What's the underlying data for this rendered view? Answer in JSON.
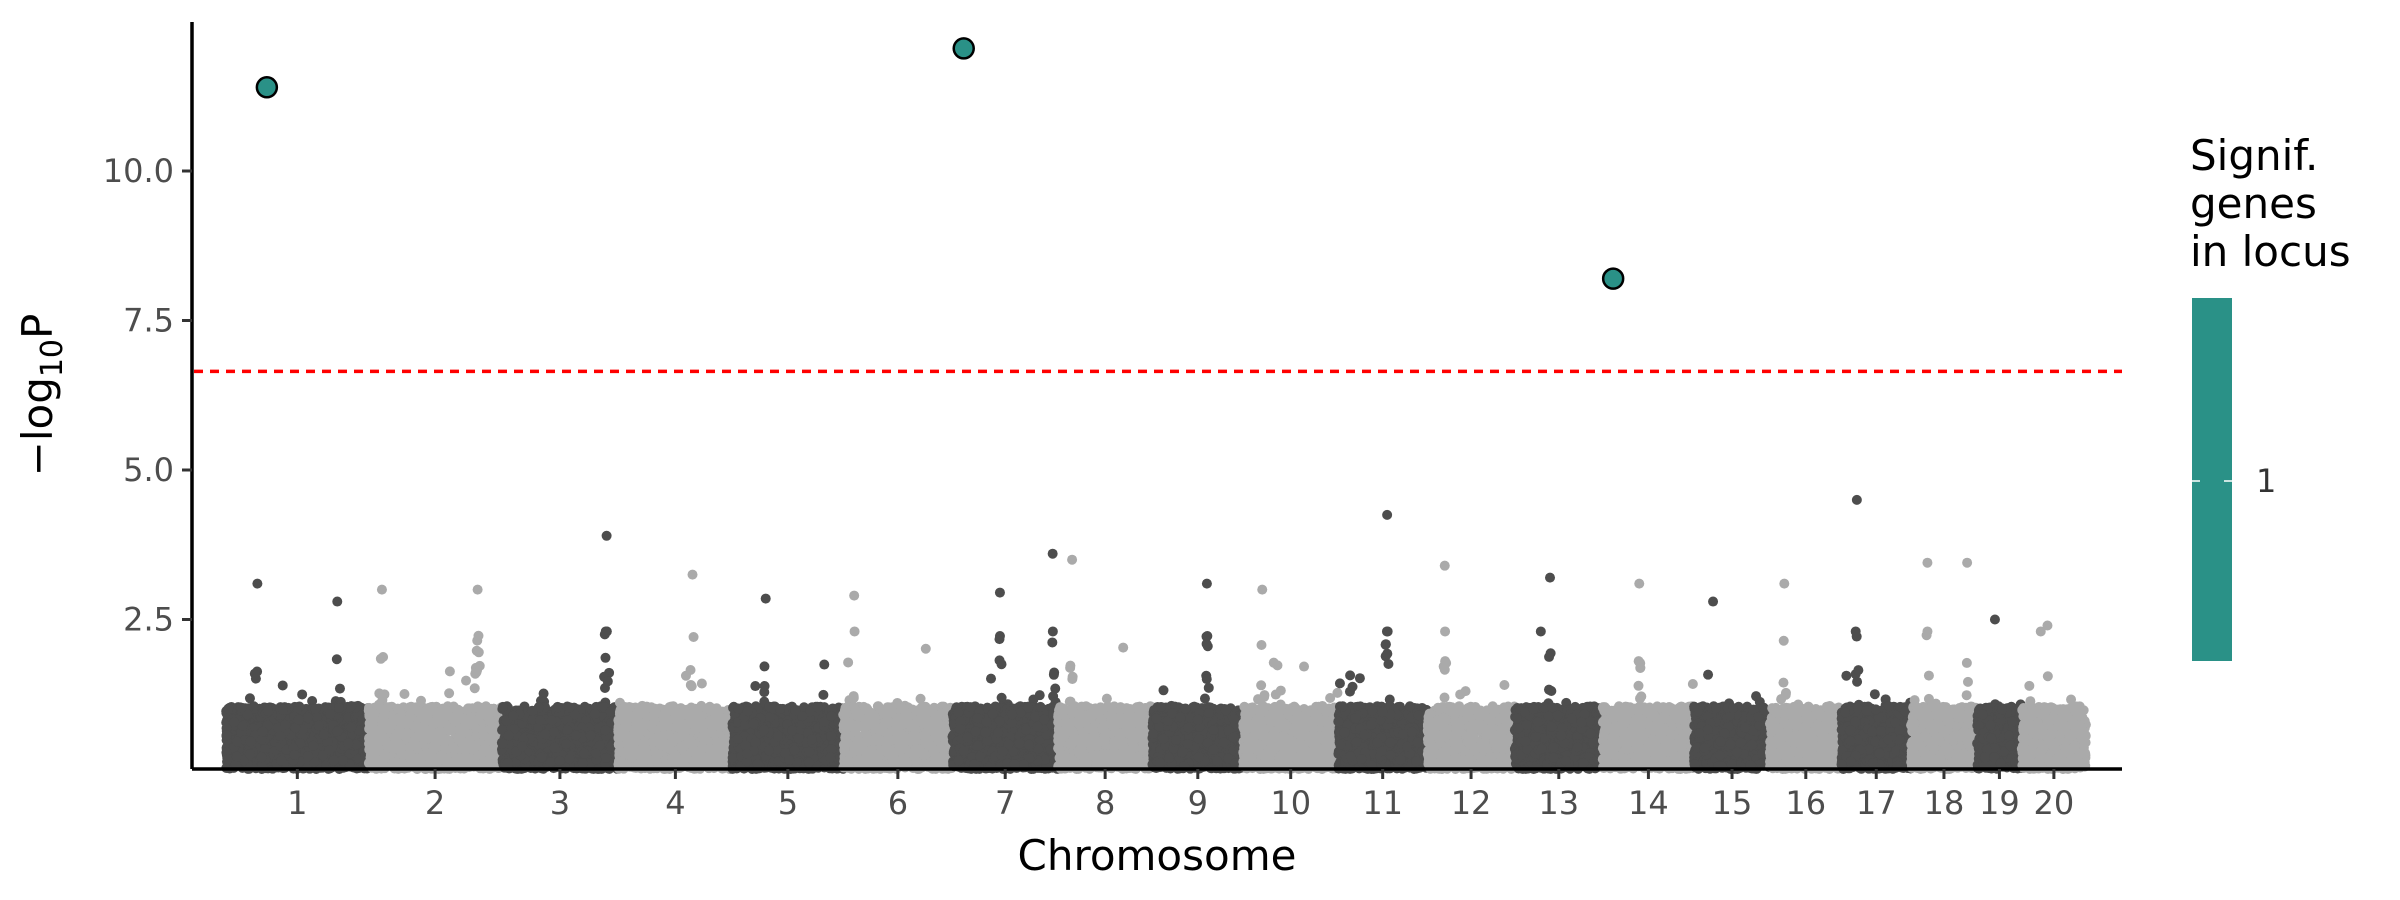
{
  "chart_data": {
    "type": "scatter",
    "title": "",
    "xlabel": "Chromosome",
    "ylabel_main": "−log",
    "ylabel_sub": "10",
    "ylabel_tail": "P",
    "ylim": [
      0,
      12.4
    ],
    "yticks": [
      2.5,
      5.0,
      7.5,
      10.0
    ],
    "ytick_labels": [
      "2.5",
      "5.0",
      "7.5",
      "10.0"
    ],
    "threshold": 6.65,
    "threshold_color": "#ff0000",
    "point_colors": [
      "#4d4d4d",
      "#aaaaaa"
    ],
    "chromosomes": [
      {
        "name": "1",
        "start": 0,
        "end": 195.5
      },
      {
        "name": "2",
        "start": 195.5,
        "end": 377.6
      },
      {
        "name": "3",
        "start": 377.6,
        "end": 537.6
      },
      {
        "name": "4",
        "start": 537.6,
        "end": 694.1
      },
      {
        "name": "5",
        "start": 694.1,
        "end": 845.9
      },
      {
        "name": "6",
        "start": 845.9,
        "end": 995.6
      },
      {
        "name": "7",
        "start": 995.6,
        "end": 1140.1
      },
      {
        "name": "8",
        "start": 1140.1,
        "end": 1269.5
      },
      {
        "name": "9",
        "start": 1269.5,
        "end": 1394.1
      },
      {
        "name": "10",
        "start": 1394.1,
        "end": 1524.1
      },
      {
        "name": "11",
        "start": 1524.1,
        "end": 1646.2
      },
      {
        "name": "12",
        "start": 1646.2,
        "end": 1766.3
      },
      {
        "name": "13",
        "start": 1766.3,
        "end": 1886.7
      },
      {
        "name": "14",
        "start": 1886.7,
        "end": 2011.9
      },
      {
        "name": "15",
        "start": 2011.9,
        "end": 2115.9
      },
      {
        "name": "16",
        "start": 2115.9,
        "end": 2214.1
      },
      {
        "name": "17",
        "start": 2214.1,
        "end": 2309.0
      },
      {
        "name": "18",
        "start": 2309.0,
        "end": 2399.7
      },
      {
        "name": "19",
        "start": 2399.7,
        "end": 2461.0
      },
      {
        "name": "20",
        "start": 2461.0,
        "end": 2549.0
      }
    ],
    "peaks": [
      {
        "chr": "1",
        "pos": 0.22,
        "y": 3.1
      },
      {
        "chr": "1",
        "pos": 0.78,
        "y": 2.8
      },
      {
        "chr": "2",
        "pos": 0.1,
        "y": 3.0
      },
      {
        "chr": "2",
        "pos": 0.82,
        "y": 3.0
      },
      {
        "chr": "3",
        "pos": 0.9,
        "y": 3.9
      },
      {
        "chr": "4",
        "pos": 0.65,
        "y": 3.25
      },
      {
        "chr": "5",
        "pos": 0.3,
        "y": 2.85
      },
      {
        "chr": "6",
        "pos": 0.1,
        "y": 2.9
      },
      {
        "chr": "7",
        "pos": 0.45,
        "y": 2.95
      },
      {
        "chr": "7",
        "pos": 0.95,
        "y": 3.6
      },
      {
        "chr": "8",
        "pos": 0.15,
        "y": 3.5
      },
      {
        "chr": "9",
        "pos": 0.6,
        "y": 3.1
      },
      {
        "chr": "10",
        "pos": 0.2,
        "y": 3.0
      },
      {
        "chr": "11",
        "pos": 0.55,
        "y": 4.25
      },
      {
        "chr": "12",
        "pos": 0.2,
        "y": 3.4
      },
      {
        "chr": "13",
        "pos": 0.4,
        "y": 3.2
      },
      {
        "chr": "14",
        "pos": 0.4,
        "y": 3.1
      },
      {
        "chr": "15",
        "pos": 0.25,
        "y": 2.8
      },
      {
        "chr": "16",
        "pos": 0.2,
        "y": 3.1
      },
      {
        "chr": "17",
        "pos": 0.22,
        "y": 4.5
      },
      {
        "chr": "18",
        "pos": 0.25,
        "y": 3.45
      },
      {
        "chr": "18",
        "pos": 0.85,
        "y": 3.45
      },
      {
        "chr": "19",
        "pos": 0.4,
        "y": 2.5
      },
      {
        "chr": "20",
        "pos": 0.4,
        "y": 2.4
      }
    ],
    "significant_points": [
      {
        "chr": "1",
        "x": 56,
        "y": 11.4
      },
      {
        "chr": "7",
        "x": 1011,
        "y": 12.05
      },
      {
        "chr": "14",
        "x": 1901,
        "y": 8.2
      }
    ],
    "significant_color": "#2a9187",
    "legend": {
      "title_lines": [
        "Signif.",
        "genes",
        "in locus"
      ],
      "labels": [
        "1"
      ],
      "color": "#2a9187",
      "placement": "right"
    }
  }
}
